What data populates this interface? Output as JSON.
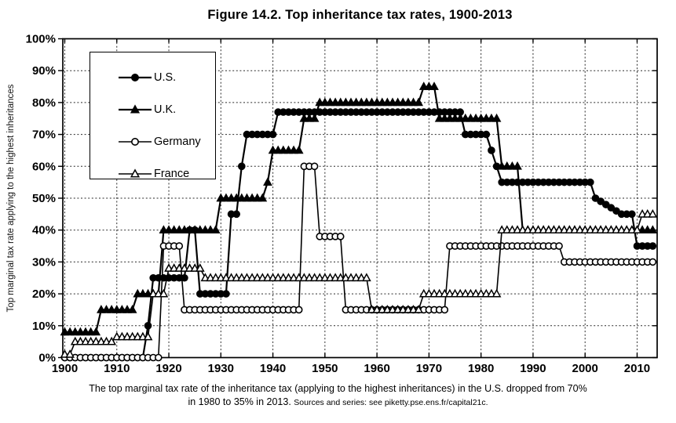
{
  "title": "Figure 14.2. Top inheritance tax rates, 1900-2013",
  "y_axis_label": "Top marginal tax rate applying to the highest inheritances",
  "caption": {
    "line1": "The top marginal tax rate of the inheritance tax (applying to the highest inheritances) in the U.S. dropped from 70%",
    "line2": "in 1980 to 35% in 2013.",
    "source": "Sources and series: see piketty.pse.ens.fr/capital21c."
  },
  "colors": {
    "line": "#000000",
    "background": "#ffffff"
  },
  "chart_data": {
    "type": "line",
    "title": "Figure 14.2. Top inheritance tax rates, 1900-2013",
    "xlabel": "",
    "ylabel": "Top marginal tax rate applying to the highest inheritances",
    "x_range": [
      1900,
      2013
    ],
    "ylim": [
      0,
      100
    ],
    "x_ticks": [
      1900,
      1910,
      1920,
      1930,
      1940,
      1950,
      1960,
      1970,
      1980,
      1990,
      2000,
      2010
    ],
    "y_ticks": [
      {
        "value": 0,
        "label": "0%"
      },
      {
        "value": 10,
        "label": "10%"
      },
      {
        "value": 20,
        "label": "20%"
      },
      {
        "value": 30,
        "label": "30%"
      },
      {
        "value": 40,
        "label": "40%"
      },
      {
        "value": 50,
        "label": "50%"
      },
      {
        "value": 60,
        "label": "60%"
      },
      {
        "value": 70,
        "label": "70%"
      },
      {
        "value": 80,
        "label": "80%"
      },
      {
        "value": 90,
        "label": "90%"
      },
      {
        "value": 100,
        "label": "100%"
      }
    ],
    "grid": "dashed",
    "legend_position": "upper-left",
    "series": [
      {
        "name": "U.S.",
        "marker": "circle",
        "fill": "filled",
        "steps": [
          [
            1900,
            1915,
            0
          ],
          [
            1916,
            1916,
            10
          ],
          [
            1917,
            1923,
            25
          ],
          [
            1924,
            1925,
            40
          ],
          [
            1926,
            1931,
            20
          ],
          [
            1932,
            1933,
            45
          ],
          [
            1934,
            1934,
            60
          ],
          [
            1935,
            1940,
            70
          ],
          [
            1941,
            1976,
            77
          ],
          [
            1977,
            1981,
            70
          ],
          [
            1982,
            1982,
            65
          ],
          [
            1983,
            1983,
            60
          ],
          [
            1984,
            2001,
            55
          ],
          [
            2002,
            2002,
            50
          ],
          [
            2003,
            2003,
            49
          ],
          [
            2004,
            2004,
            48
          ],
          [
            2005,
            2005,
            47
          ],
          [
            2006,
            2006,
            46
          ],
          [
            2007,
            2009,
            45
          ],
          [
            2010,
            2013,
            35
          ]
        ]
      },
      {
        "name": "U.K.",
        "marker": "triangle",
        "fill": "filled",
        "steps": [
          [
            1900,
            1906,
            8
          ],
          [
            1907,
            1913,
            15
          ],
          [
            1914,
            1918,
            20
          ],
          [
            1919,
            1929,
            40
          ],
          [
            1930,
            1938,
            50
          ],
          [
            1939,
            1939,
            55
          ],
          [
            1940,
            1945,
            65
          ],
          [
            1946,
            1948,
            75
          ],
          [
            1949,
            1968,
            80
          ],
          [
            1969,
            1971,
            85
          ],
          [
            1972,
            1983,
            75
          ],
          [
            1984,
            1987,
            60
          ],
          [
            1988,
            2013,
            40
          ]
        ]
      },
      {
        "name": "Germany",
        "marker": "circle",
        "fill": "open",
        "steps": [
          [
            1900,
            1918,
            0
          ],
          [
            1919,
            1922,
            35
          ],
          [
            1923,
            1945,
            15
          ],
          [
            1946,
            1948,
            60
          ],
          [
            1949,
            1953,
            38
          ],
          [
            1954,
            1973,
            15
          ],
          [
            1974,
            1995,
            35
          ],
          [
            1996,
            2013,
            30
          ]
        ]
      },
      {
        "name": "France",
        "marker": "triangle",
        "fill": "open",
        "steps": [
          [
            1900,
            1901,
            1
          ],
          [
            1902,
            1909,
            5
          ],
          [
            1910,
            1916,
            6.5
          ],
          [
            1917,
            1919,
            20
          ],
          [
            1920,
            1926,
            28
          ],
          [
            1927,
            1958,
            25
          ],
          [
            1959,
            1968,
            15
          ],
          [
            1969,
            1983,
            20
          ],
          [
            1984,
            2010,
            40
          ],
          [
            2011,
            2013,
            45
          ]
        ]
      }
    ]
  }
}
